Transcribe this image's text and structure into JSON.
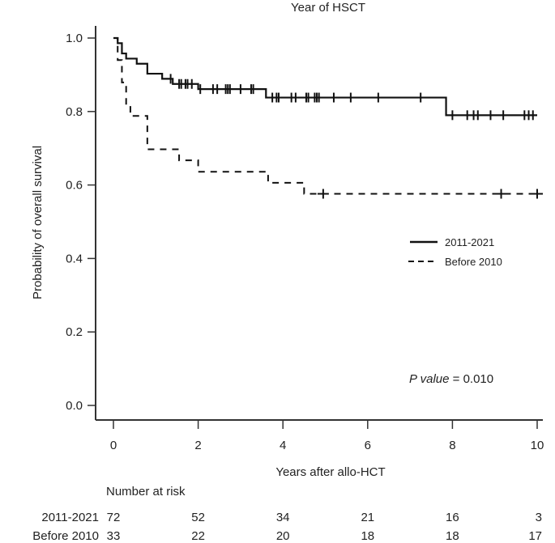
{
  "chart_data": {
    "type": "line",
    "subtype": "kaplan-meier",
    "title": "Year of HSCT",
    "xlabel": "Years after allo-HCT",
    "ylabel": "Probability of overall survival",
    "xlim": [
      0,
      10
    ],
    "ylim": [
      0,
      1.0
    ],
    "x_ticks": [
      0,
      2,
      4,
      6,
      8,
      10
    ],
    "x_tick_labels": [
      "0",
      "2",
      "4",
      "6",
      "8",
      "10"
    ],
    "y_ticks": [
      0,
      0.2,
      0.4,
      0.6,
      0.8,
      1.0
    ],
    "y_tick_labels": [
      "0.0",
      "0.2",
      "0.4",
      "0.6",
      "0.8",
      "1.0"
    ],
    "grid": false,
    "legend_position": "right",
    "annotation": {
      "italic": "P value",
      "text": " = 0.010"
    },
    "series": [
      {
        "name": "2011-2021",
        "style": "solid",
        "color": "#111111",
        "steps": [
          [
            0,
            1.0
          ],
          [
            0.1,
            0.986
          ],
          [
            0.2,
            0.958
          ],
          [
            0.3,
            0.944
          ],
          [
            0.55,
            0.93
          ],
          [
            0.8,
            0.903
          ],
          [
            1.15,
            0.889
          ],
          [
            1.4,
            0.875
          ],
          [
            2.0,
            0.861
          ],
          [
            3.6,
            0.838
          ],
          [
            7.85,
            0.79
          ],
          [
            10.0,
            0.79
          ]
        ],
        "censored": [
          1.35,
          1.55,
          1.6,
          1.7,
          1.75,
          1.85,
          2.05,
          2.35,
          2.45,
          2.65,
          2.7,
          2.75,
          3.0,
          3.25,
          3.3,
          3.75,
          3.85,
          3.9,
          4.2,
          4.3,
          4.55,
          4.6,
          4.75,
          4.8,
          4.85,
          5.2,
          5.6,
          6.25,
          7.25,
          8.0,
          8.35,
          8.5,
          8.6,
          8.9,
          9.2,
          9.7,
          9.8,
          9.9
        ]
      },
      {
        "name": "Before 2010",
        "style": "dashed",
        "color": "#111111",
        "steps": [
          [
            0,
            1.0
          ],
          [
            0.1,
            0.94
          ],
          [
            0.2,
            0.879
          ],
          [
            0.3,
            0.818
          ],
          [
            0.4,
            0.788
          ],
          [
            0.8,
            0.697
          ],
          [
            1.55,
            0.667
          ],
          [
            2.0,
            0.636
          ],
          [
            3.65,
            0.606
          ],
          [
            4.5,
            0.576
          ],
          [
            10.0,
            0.576
          ]
        ],
        "censored": [
          4.95,
          9.15,
          10.0
        ]
      }
    ],
    "risk_table": {
      "title": "Number at risk",
      "times": [
        0,
        2,
        4,
        6,
        8,
        10
      ],
      "rows": [
        {
          "label": "2011-2021",
          "values": [
            72,
            52,
            34,
            21,
            16,
            3
          ]
        },
        {
          "label": "Before 2010",
          "values": [
            33,
            22,
            20,
            18,
            18,
            17
          ]
        }
      ]
    }
  }
}
